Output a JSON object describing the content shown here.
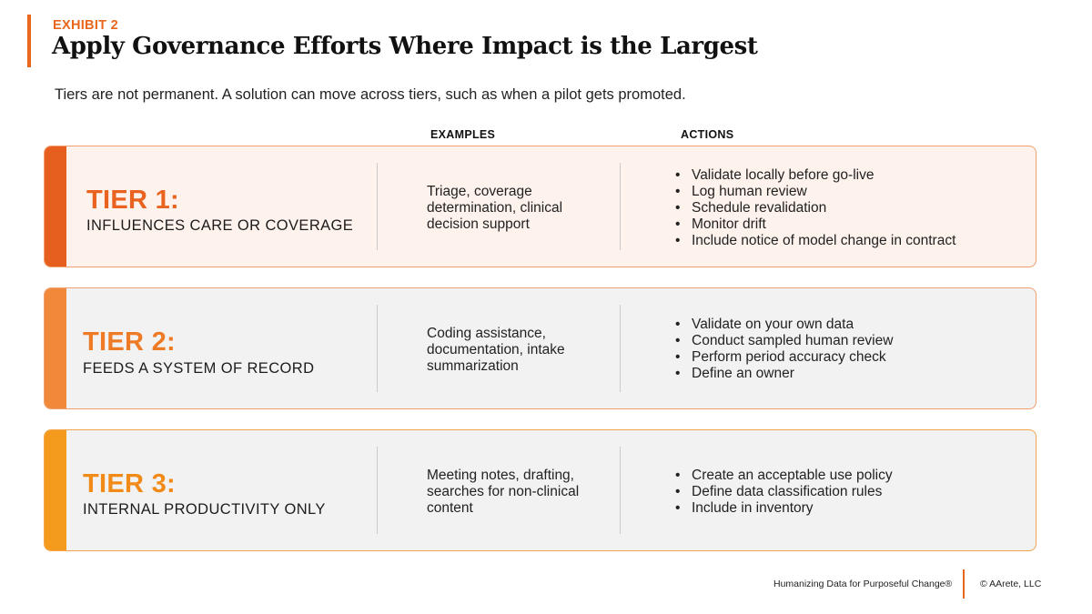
{
  "exhibit_label": "EXHIBIT 2",
  "title": "Apply Governance Efforts Where Impact is the Largest",
  "subtitle": "Tiers are not permanent. A solution can move across tiers, such as when a pilot gets promoted.",
  "columns": {
    "examples": "EXAMPLES",
    "actions": "ACTIONS"
  },
  "colors": {
    "accent": "#e8671d",
    "tier1": "#e75f1f",
    "tier2": "#f08a3a",
    "tier3": "#f49a1c"
  },
  "tiers": [
    {
      "name": "TIER 1:",
      "description": "INFLUENCES CARE OR COVERAGE",
      "examples": "Triage, coverage determination, clinical decision support",
      "actions": [
        "Validate locally before go-live",
        "Log human review",
        "Schedule revalidation",
        "Monitor drift",
        "Include notice of model change in contract"
      ]
    },
    {
      "name": "TIER 2:",
      "description": "FEEDS A SYSTEM OF RECORD",
      "examples": "Coding assistance, documentation, intake summarization",
      "actions": [
        "Validate on your own data",
        "Conduct sampled human review",
        "Perform period accuracy check",
        "Define an owner"
      ]
    },
    {
      "name": "TIER 3:",
      "description": "INTERNAL PRODUCTIVITY ONLY",
      "examples": "Meeting notes, drafting, searches for non-clinical content",
      "actions": [
        "Create an acceptable use policy",
        "Define data classification rules",
        "Include in inventory"
      ]
    }
  ],
  "footer": {
    "tagline": "Humanizing Data for Purposeful Change®",
    "copyright": "© AArete, LLC"
  }
}
